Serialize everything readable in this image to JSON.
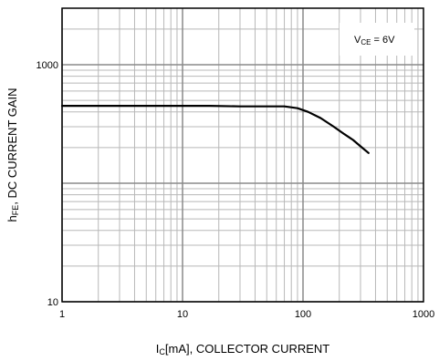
{
  "chart_data": {
    "type": "line",
    "title": "",
    "xlabel": {
      "main": "I",
      "sub": "C",
      "rest": "[mA], COLLECTOR CURRENT"
    },
    "ylabel": {
      "main": "h",
      "sub": "FE",
      "rest": ", DC CURRENT GAIN"
    },
    "x_scale": "log",
    "y_scale": "log",
    "xlim": [
      1,
      1000
    ],
    "ylim": [
      10,
      3000
    ],
    "x_ticks": [
      {
        "value": 1,
        "label": "1"
      },
      {
        "value": 10,
        "label": "10"
      },
      {
        "value": 100,
        "label": "100"
      },
      {
        "value": 1000,
        "label": "1000"
      }
    ],
    "y_ticks": [
      {
        "value": 10,
        "label": "10"
      },
      {
        "value": 1000,
        "label": "1000"
      }
    ],
    "grid": true,
    "annotation": {
      "main": "V",
      "sub": "CE",
      "rest": " = 6V",
      "position": "top-right"
    },
    "series": [
      {
        "x": [
          1,
          3,
          10,
          17,
          30,
          50,
          70,
          90,
          110,
          140,
          180,
          220,
          260,
          300,
          350
        ],
        "y": [
          450,
          450,
          450,
          450,
          445,
          445,
          445,
          430,
          400,
          355,
          300,
          260,
          232,
          205,
          180
        ]
      }
    ]
  }
}
